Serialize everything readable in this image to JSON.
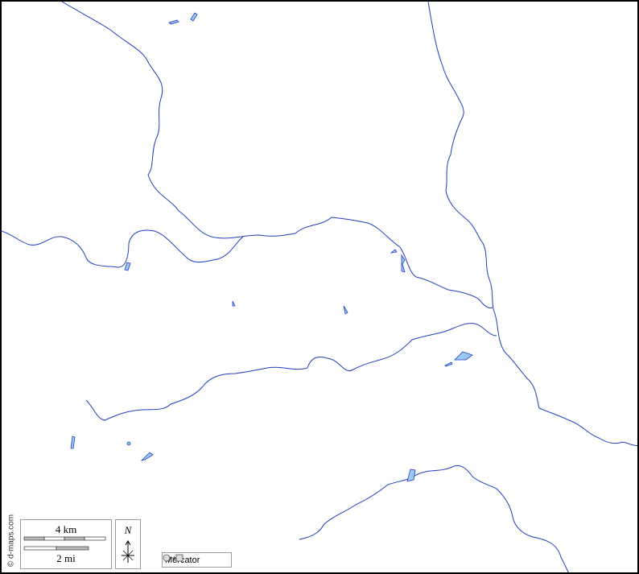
{
  "credit": "© d-maps.com",
  "scale_bar": {
    "km_label": "4 km",
    "mi_label": "2 mi"
  },
  "north_arrow": {
    "label": "N"
  },
  "projection": {
    "label": "Mercator",
    "icon": "circle-to-square-icon"
  },
  "colors": {
    "water": "#9cc8f5",
    "river": "#1f3fbf",
    "land": "#ffffff"
  }
}
